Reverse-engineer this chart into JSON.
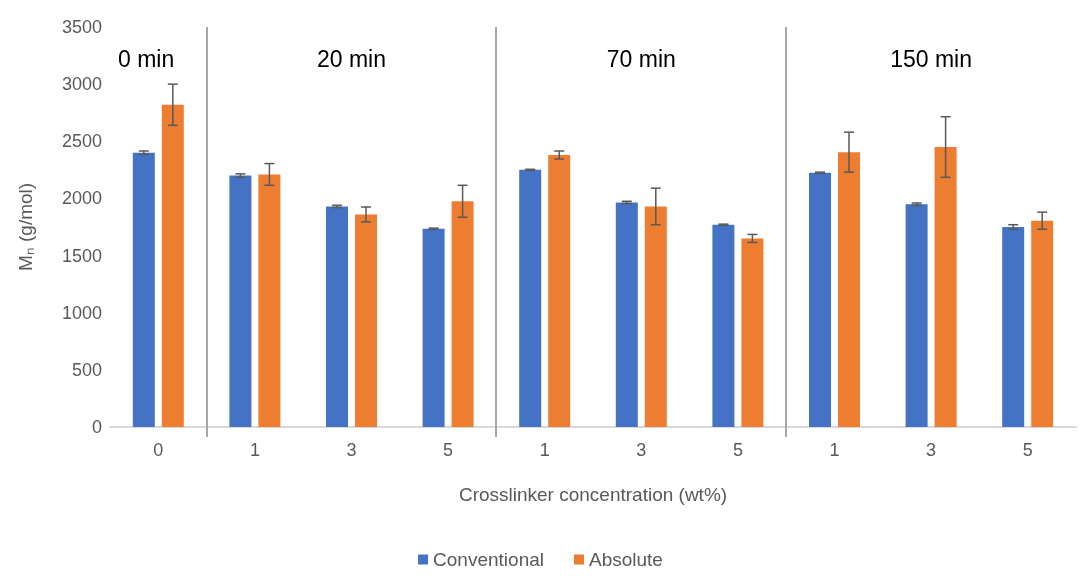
{
  "chart_data": {
    "type": "bar",
    "xlabel": "Crosslinker concentration (wt%)",
    "ylabel": "Mₙ (g/mol)",
    "categories": [
      "0",
      "1",
      "3",
      "5",
      "1",
      "3",
      "5",
      "1",
      "3",
      "5"
    ],
    "series": [
      {
        "name": "Conventional",
        "color": "#4472c4",
        "values": [
          2400,
          2200,
          1930,
          1735,
          2250,
          1965,
          1770,
          2225,
          1950,
          1750
        ],
        "errors": [
          15,
          15,
          10,
          5,
          5,
          10,
          5,
          5,
          10,
          20
        ]
      },
      {
        "name": "Absolute",
        "color": "#ed7d31",
        "values": [
          2820,
          2210,
          1860,
          1975,
          2380,
          1930,
          1650,
          2405,
          2450,
          1805
        ],
        "errors": [
          180,
          95,
          65,
          140,
          35,
          160,
          35,
          175,
          265,
          75
        ]
      }
    ],
    "ylim": [
      0,
      3500
    ],
    "yticks": [
      0,
      500,
      1000,
      1500,
      2000,
      2500,
      3000,
      3500
    ],
    "grid": false,
    "legend": "bottom",
    "annotations": [
      "0 min",
      "20 min",
      "70 min",
      "150 min"
    ]
  }
}
